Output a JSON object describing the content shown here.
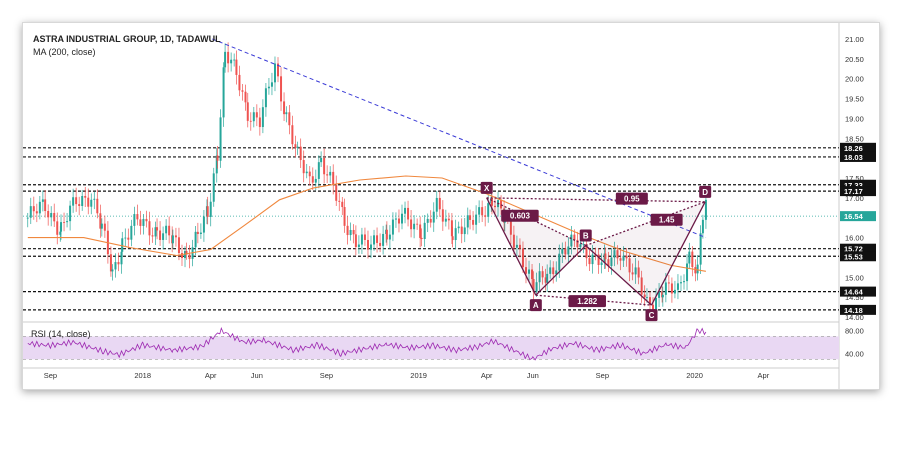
{
  "chart_title": "ASTRA INDUSTRIAL GROUP, 1D, TADAWUL",
  "indicator_label": "MA (200, close)",
  "rsi_label": "RSI (14, close)",
  "colors": {
    "candle_up": "#26a69a",
    "candle_down": "#ef5350",
    "ma": "#f0883e",
    "pattern": "#6b1a47",
    "pattern_fill": "#6b1a47",
    "trendline": "#3a3ad6",
    "rsi": "#9c27b0",
    "rsi_band": "#e9d8f3",
    "level": "#111111",
    "price_marker": "#26a69a"
  },
  "chart_data": {
    "type": "candlestick",
    "title": "ASTRA INDUSTRIAL GROUP, 1D, TADAWUL",
    "xlabel": "",
    "ylabel": "",
    "ylim": [
      13.9,
      21.1
    ],
    "y_ticks": [
      14.0,
      14.5,
      15.0,
      15.5,
      16.0,
      16.5,
      17.0,
      17.5,
      18.0,
      18.5,
      19.0,
      19.5,
      20.0,
      20.5,
      21.0
    ],
    "y_tick_labels": [
      "14.00",
      "14.50",
      "15.00",
      "15.50",
      "16.00",
      "16.50",
      "17.00",
      "17.50",
      "18.00",
      "18.50",
      "19.00",
      "19.50",
      "20.00",
      "20.50",
      "21.00"
    ],
    "x_ticks": [
      "Sep",
      "2018",
      "Apr",
      "Jun",
      "Sep",
      "2019",
      "Apr",
      "Jun",
      "Sep",
      "2020",
      "Apr"
    ],
    "x_tick_dates": [
      "2017-09-01",
      "2018-01-01",
      "2018-04-01",
      "2018-06-01",
      "2018-09-01",
      "2019-01-01",
      "2019-04-01",
      "2019-06-01",
      "2019-09-01",
      "2020-01-01",
      "2020-04-01"
    ],
    "x_range": [
      "2017-08-01",
      "2020-07-10"
    ],
    "price_path": [
      [
        "2017-08-02",
        16.5
      ],
      [
        "2017-08-25",
        16.8
      ],
      [
        "2017-09-15",
        16.2
      ],
      [
        "2017-10-05",
        16.9
      ],
      [
        "2017-10-25",
        17.1
      ],
      [
        "2017-11-08",
        16.2
      ],
      [
        "2017-11-22",
        15.1
      ],
      [
        "2017-12-05",
        15.9
      ],
      [
        "2017-12-25",
        16.4
      ],
      [
        "2018-01-20",
        16.2
      ],
      [
        "2018-02-10",
        15.9
      ],
      [
        "2018-02-28",
        15.6
      ],
      [
        "2018-03-15",
        16.0
      ],
      [
        "2018-03-28",
        16.6
      ],
      [
        "2018-04-10",
        18.2
      ],
      [
        "2018-04-20",
        20.6
      ],
      [
        "2018-05-05",
        20.1
      ],
      [
        "2018-05-20",
        19.2
      ],
      [
        "2018-06-05",
        18.9
      ],
      [
        "2018-06-25",
        20.3
      ],
      [
        "2018-07-10",
        19.1
      ],
      [
        "2018-07-25",
        18.0
      ],
      [
        "2018-08-10",
        17.4
      ],
      [
        "2018-08-25",
        18.0
      ],
      [
        "2018-09-10",
        17.2
      ],
      [
        "2018-09-25",
        16.4
      ],
      [
        "2018-10-10",
        16.0
      ],
      [
        "2018-10-30",
        15.7
      ],
      [
        "2018-11-20",
        16.2
      ],
      [
        "2018-12-10",
        16.5
      ],
      [
        "2019-01-05",
        16.2
      ],
      [
        "2019-01-25",
        16.7
      ],
      [
        "2019-02-15",
        16.2
      ],
      [
        "2019-03-10",
        16.3
      ],
      [
        "2019-04-08",
        17.0
      ],
      [
        "2019-04-25",
        16.4
      ],
      [
        "2019-05-15",
        15.7
      ],
      [
        "2019-06-02",
        14.7
      ],
      [
        "2019-06-20",
        15.1
      ],
      [
        "2019-07-10",
        15.6
      ],
      [
        "2019-07-30",
        15.9
      ],
      [
        "2019-08-15",
        15.6
      ],
      [
        "2019-09-05",
        15.3
      ],
      [
        "2019-09-25",
        15.7
      ],
      [
        "2019-10-15",
        15.0
      ],
      [
        "2019-10-30",
        14.3
      ],
      [
        "2019-11-20",
        14.7
      ],
      [
        "2019-12-10",
        14.6
      ],
      [
        "2019-12-25",
        15.6
      ],
      [
        "2020-01-05",
        15.2
      ],
      [
        "2020-01-12",
        16.5
      ],
      [
        "2020-01-16",
        16.9
      ]
    ],
    "moving_average": [
      [
        "2017-08-02",
        16.0
      ],
      [
        "2017-10-15",
        16.0
      ],
      [
        "2017-12-15",
        15.75
      ],
      [
        "2018-02-15",
        15.55
      ],
      [
        "2018-04-01",
        15.7
      ],
      [
        "2018-05-15",
        16.3
      ],
      [
        "2018-07-01",
        16.95
      ],
      [
        "2018-08-15",
        17.25
      ],
      [
        "2018-10-15",
        17.45
      ],
      [
        "2018-12-15",
        17.55
      ],
      [
        "2019-02-01",
        17.5
      ],
      [
        "2019-04-01",
        17.1
      ],
      [
        "2019-06-01",
        16.6
      ],
      [
        "2019-08-01",
        16.1
      ],
      [
        "2019-10-01",
        15.65
      ],
      [
        "2019-12-01",
        15.3
      ],
      [
        "2020-01-16",
        15.15
      ]
    ],
    "horizontal_levels": [
      18.26,
      18.03,
      17.33,
      17.17,
      15.72,
      15.53,
      14.64,
      14.18
    ],
    "level_labels": [
      "18.26",
      "18.03",
      "17.33",
      "17.17",
      "15.72",
      "15.53",
      "14.64",
      "14.18"
    ],
    "last_price": 16.54,
    "last_price_label": "16.54",
    "trendline": {
      "from": [
        "2018-04-03",
        21.0
      ],
      "to": [
        "2020-01-16",
        16.0
      ]
    },
    "harmonic_pattern": {
      "points": [
        {
          "label": "X",
          "date": "2019-04-01",
          "price": 17.0
        },
        {
          "label": "A",
          "date": "2019-06-05",
          "price": 14.55
        },
        {
          "label": "B",
          "date": "2019-08-10",
          "price": 15.8
        },
        {
          "label": "C",
          "date": "2019-11-05",
          "price": 14.3
        },
        {
          "label": "D",
          "date": "2020-01-15",
          "price": 16.9
        }
      ],
      "ratios": [
        {
          "label": "0.603",
          "date": "2019-05-15",
          "price": 16.55
        },
        {
          "label": "0.95",
          "date": "2019-10-10",
          "price": 16.98
        },
        {
          "label": "1.45",
          "date": "2019-11-25",
          "price": 16.45
        },
        {
          "label": "1.282",
          "date": "2019-08-12",
          "price": 14.4
        }
      ]
    },
    "rsi": {
      "ylim": [
        20,
        90
      ],
      "y_ticks": [
        40,
        80
      ],
      "y_tick_labels": [
        "40.00",
        "80.00"
      ],
      "band": [
        30,
        70
      ],
      "values": [
        [
          "2017-08-02",
          58
        ],
        [
          "2017-09-01",
          54
        ],
        [
          "2017-10-01",
          60
        ],
        [
          "2017-11-10",
          44
        ],
        [
          "2017-12-01",
          38
        ],
        [
          "2018-01-01",
          55
        ],
        [
          "2018-02-10",
          46
        ],
        [
          "2018-03-20",
          52
        ],
        [
          "2018-04-15",
          80
        ],
        [
          "2018-05-15",
          60
        ],
        [
          "2018-06-10",
          63
        ],
        [
          "2018-07-20",
          46
        ],
        [
          "2018-08-20",
          55
        ],
        [
          "2018-09-20",
          40
        ],
        [
          "2018-10-20",
          48
        ],
        [
          "2018-11-20",
          56
        ],
        [
          "2018-12-20",
          50
        ],
        [
          "2019-01-20",
          54
        ],
        [
          "2019-02-20",
          46
        ],
        [
          "2019-03-20",
          52
        ],
        [
          "2019-04-10",
          62
        ],
        [
          "2019-05-10",
          44
        ],
        [
          "2019-06-01",
          30
        ],
        [
          "2019-06-25",
          48
        ],
        [
          "2019-07-25",
          58
        ],
        [
          "2019-08-25",
          46
        ],
        [
          "2019-09-25",
          55
        ],
        [
          "2019-10-25",
          40
        ],
        [
          "2019-11-25",
          56
        ],
        [
          "2019-12-20",
          50
        ],
        [
          "2020-01-05",
          80
        ],
        [
          "2020-01-16",
          78
        ]
      ]
    }
  }
}
